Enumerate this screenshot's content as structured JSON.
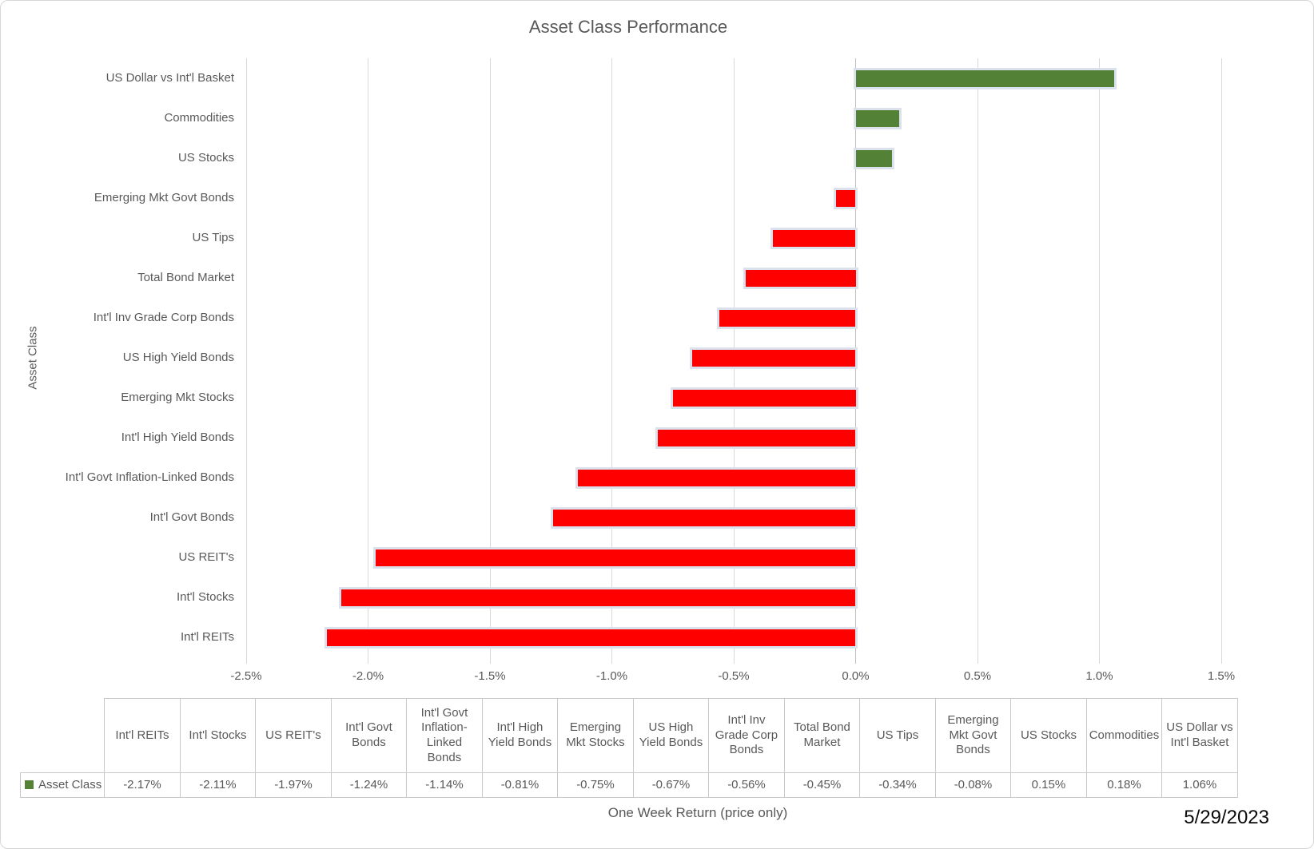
{
  "frame": {
    "date_label": "5/29/2023"
  },
  "chart_data": {
    "type": "bar",
    "orientation": "horizontal",
    "title": "Asset Class Performance",
    "xlabel": "One Week Return (price only)",
    "ylabel": "Asset Class",
    "series_name": "Asset Class",
    "xlim": [
      -2.5,
      1.5
    ],
    "grid": "vertical gridlines on",
    "legend_position": "data-table-left",
    "x_tick_values": [
      -2.5,
      -2.0,
      -1.5,
      -1.0,
      -0.5,
      0.0,
      0.5,
      1.0,
      1.5
    ],
    "x_tick_labels": [
      "-2.5%",
      "-2.0%",
      "-1.5%",
      "-1.0%",
      "-0.5%",
      "0.0%",
      "0.5%",
      "1.0%",
      "1.5%"
    ],
    "categories": [
      "Int'l REITs",
      "Int'l Stocks",
      "US REIT's",
      "Int'l Govt Bonds",
      "Int'l Govt Inflation-Linked Bonds",
      "Int'l High Yield Bonds",
      "Emerging Mkt Stocks",
      "US High Yield Bonds",
      "Int'l Inv Grade Corp Bonds",
      "Total Bond Market",
      "US Tips",
      "Emerging Mkt Govt Bonds",
      "US Stocks",
      "Commodities",
      "US Dollar vs Int'l Basket"
    ],
    "values": [
      -2.17,
      -2.11,
      -1.97,
      -1.24,
      -1.14,
      -0.81,
      -0.75,
      -0.67,
      -0.56,
      -0.45,
      -0.34,
      -0.08,
      0.15,
      0.18,
      1.06
    ],
    "value_labels": [
      "-2.17%",
      "-2.11%",
      "-1.97%",
      "-1.24%",
      "-1.14%",
      "-0.81%",
      "-0.75%",
      "-0.67%",
      "-0.56%",
      "-0.45%",
      "-0.34%",
      "-0.08%",
      "0.15%",
      "0.18%",
      "1.06%"
    ],
    "bar_sort": "descending value from top",
    "colors": {
      "positive": "#538135",
      "negative": "#FF0000",
      "bar_outline": "#dbe2ee",
      "grid": "#d9d9d9",
      "zero_line": "#bfbfbf",
      "text": "#595959"
    }
  }
}
